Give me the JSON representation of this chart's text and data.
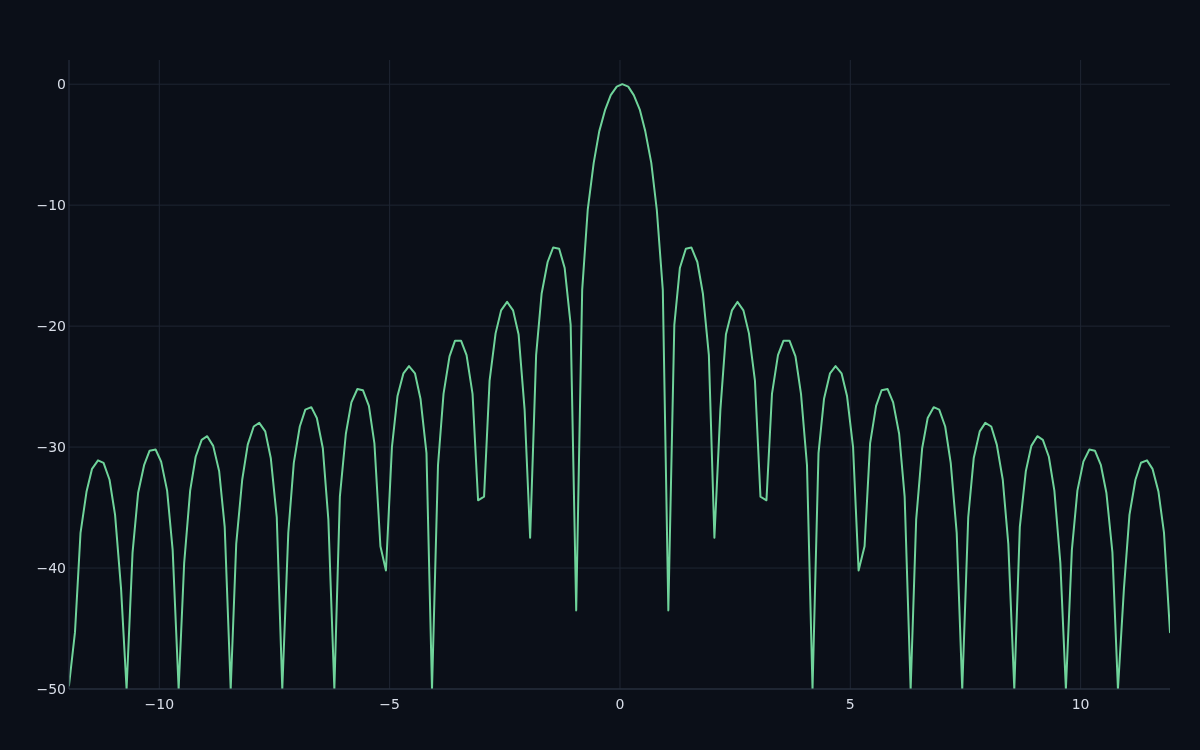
{
  "chart_data": {
    "type": "line",
    "color": "#6fd39a",
    "x": [
      -11.96,
      -11.83,
      -11.71,
      -11.58,
      -11.46,
      -11.33,
      -11.21,
      -11.08,
      -10.96,
      -10.83,
      -10.71,
      -10.58,
      -10.46,
      -10.33,
      -10.21,
      -10.08,
      -9.96,
      -9.83,
      -9.71,
      -9.58,
      -9.46,
      -9.33,
      -9.21,
      -9.08,
      -8.96,
      -8.83,
      -8.7,
      -8.58,
      -8.45,
      -8.33,
      -8.2,
      -8.08,
      -7.95,
      -7.83,
      -7.7,
      -7.58,
      -7.45,
      -7.33,
      -7.2,
      -7.08,
      -6.95,
      -6.83,
      -6.7,
      -6.58,
      -6.45,
      -6.33,
      -6.2,
      -6.08,
      -5.95,
      -5.83,
      -5.7,
      -5.58,
      -5.45,
      -5.33,
      -5.2,
      -5.08,
      -4.95,
      -4.83,
      -4.7,
      -4.58,
      -4.45,
      -4.33,
      -4.2,
      -4.08,
      -3.95,
      -3.83,
      -3.7,
      -3.58,
      -3.45,
      -3.33,
      -3.2,
      -3.08,
      -2.95,
      -2.83,
      -2.7,
      -2.58,
      -2.45,
      -2.32,
      -2.2,
      -2.07,
      -1.95,
      -1.82,
      -1.7,
      -1.57,
      -1.45,
      -1.32,
      -1.2,
      -1.07,
      -0.95,
      -0.82,
      -0.7,
      -0.57,
      -0.45,
      -0.32,
      -0.2,
      -0.07,
      0.05,
      0.18,
      0.3,
      0.43,
      0.55,
      0.68,
      0.8,
      0.93,
      1.05,
      1.18,
      1.3,
      1.43,
      1.55,
      1.68,
      1.8,
      1.93,
      2.05,
      2.18,
      2.3,
      2.43,
      2.55,
      2.68,
      2.8,
      2.93,
      3.05,
      3.18,
      3.3,
      3.43,
      3.55,
      3.68,
      3.81,
      3.93,
      4.06,
      4.18,
      4.31,
      4.43,
      4.56,
      4.68,
      4.81,
      4.93,
      5.06,
      5.18,
      5.31,
      5.43,
      5.56,
      5.68,
      5.81,
      5.93,
      6.06,
      6.18,
      6.31,
      6.43,
      6.56,
      6.68,
      6.81,
      6.93,
      7.06,
      7.18,
      7.31,
      7.43,
      7.56,
      7.68,
      7.81,
      7.93,
      8.06,
      8.18,
      8.31,
      8.43,
      8.56,
      8.68,
      8.81,
      8.93,
      9.06,
      9.18,
      9.31,
      9.43,
      9.56,
      9.68,
      9.81,
      9.93,
      10.06,
      10.19,
      10.31,
      10.44,
      10.56,
      10.69,
      10.81,
      10.94,
      11.06,
      11.19,
      11.31,
      11.44,
      11.56,
      11.69,
      11.81,
      11.94
    ],
    "values": [
      -49.7,
      -45.3,
      -37.1,
      -33.7,
      -31.8,
      -31.1,
      -31.3,
      -32.7,
      -35.6,
      -41.7,
      -50,
      -38.7,
      -33.8,
      -31.5,
      -30.3,
      -30.2,
      -31.2,
      -33.6,
      -38.5,
      -50,
      -39.6,
      -33.6,
      -30.8,
      -29.4,
      -29.1,
      -29.9,
      -32.0,
      -36.6,
      -50,
      -38.0,
      -32.7,
      -29.8,
      -28.3,
      -28.0,
      -28.7,
      -30.9,
      -35.8,
      -50,
      -37.1,
      -31.3,
      -28.3,
      -26.9,
      -26.7,
      -27.6,
      -30.1,
      -36.0,
      -50,
      -34.1,
      -28.9,
      -26.3,
      -25.2,
      -25.3,
      -26.6,
      -29.7,
      -38.2,
      -40.2,
      -30.0,
      -25.8,
      -23.9,
      -23.3,
      -23.9,
      -26.0,
      -30.5,
      -50,
      -31.5,
      -25.6,
      -22.5,
      -21.2,
      -21.2,
      -22.4,
      -25.6,
      -34.4,
      -34.1,
      -24.5,
      -20.6,
      -18.7,
      -18.0,
      -18.7,
      -20.7,
      -26.9,
      -37.5,
      -22.4,
      -17.3,
      -14.7,
      -13.5,
      -13.6,
      -15.2,
      -19.9,
      -43.5,
      -17.0,
      -10.4,
      -6.5,
      -3.9,
      -2.1,
      -0.9,
      -0.2,
      0,
      -0.2,
      -0.9,
      -2.1,
      -3.9,
      -6.5,
      -10.4,
      -17.0,
      -43.5,
      -19.9,
      -15.2,
      -13.6,
      -13.5,
      -14.7,
      -17.3,
      -22.4,
      -37.5,
      -26.9,
      -20.7,
      -18.7,
      -18.0,
      -18.7,
      -20.6,
      -24.5,
      -34.1,
      -34.4,
      -25.6,
      -22.4,
      -21.2,
      -21.2,
      -22.5,
      -25.6,
      -31.5,
      -50,
      -30.5,
      -26.0,
      -23.9,
      -23.3,
      -23.9,
      -25.8,
      -30.0,
      -40.2,
      -38.2,
      -29.7,
      -26.6,
      -25.3,
      -25.2,
      -26.3,
      -28.9,
      -34.1,
      -50,
      -36.0,
      -30.1,
      -27.6,
      -26.7,
      -26.9,
      -28.3,
      -31.3,
      -37.1,
      -50,
      -35.8,
      -30.9,
      -28.7,
      -28.0,
      -28.3,
      -29.8,
      -32.7,
      -38.0,
      -50,
      -36.6,
      -32.0,
      -29.9,
      -29.1,
      -29.4,
      -30.8,
      -33.6,
      -39.6,
      -50,
      -38.5,
      -33.6,
      -31.2,
      -30.2,
      -30.3,
      -31.5,
      -33.8,
      -38.7,
      -50,
      -41.7,
      -35.6,
      -32.7,
      -31.3,
      -31.1,
      -31.8,
      -33.7,
      -37.1,
      -45.3
    ],
    "xlim": [
      -11.96,
      11.94
    ],
    "ylim": [
      -50,
      2
    ],
    "xticks": [
      {
        "value": -10,
        "label": "−10"
      },
      {
        "value": -5,
        "label": "−5"
      },
      0,
      5,
      10
    ],
    "yticks": [
      {
        "value": -50,
        "label": "−50"
      },
      {
        "value": -40,
        "label": "−40"
      },
      {
        "value": -30,
        "label": "−30"
      },
      {
        "value": -20,
        "label": "−20"
      },
      {
        "value": -10,
        "label": "−10"
      },
      0
    ],
    "grid": true
  }
}
